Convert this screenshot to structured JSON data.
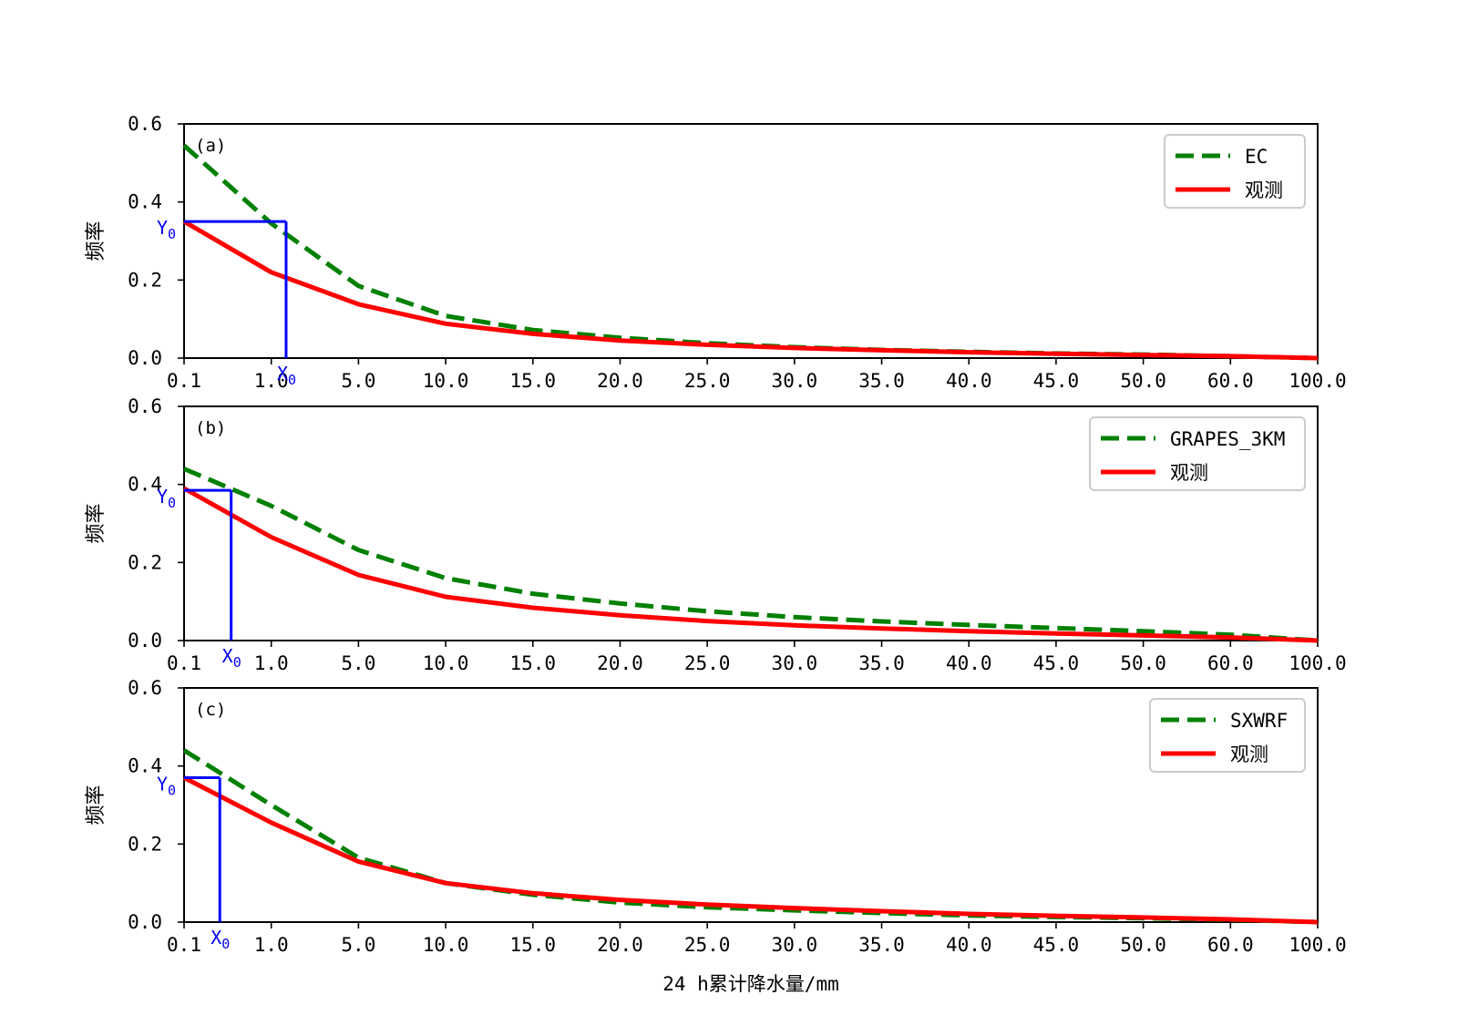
{
  "chart_data": [
    {
      "type": "line",
      "panel_label": "(a)",
      "x": [
        "0.1",
        "1.0",
        "5.0",
        "10.0",
        "15.0",
        "20.0",
        "25.0",
        "30.0",
        "35.0",
        "40.0",
        "45.0",
        "50.0",
        "60.0",
        "100.0"
      ],
      "series": [
        {
          "name": "EC",
          "style": "dashed",
          "color": "#008000",
          "values": [
            0.545,
            0.345,
            0.185,
            0.108,
            0.072,
            0.052,
            0.038,
            0.028,
            0.021,
            0.016,
            0.012,
            0.009,
            0.005,
            0.0
          ]
        },
        {
          "name": "观测",
          "style": "solid",
          "color": "#ff0000",
          "values": [
            0.35,
            0.22,
            0.138,
            0.088,
            0.062,
            0.045,
            0.034,
            0.026,
            0.02,
            0.015,
            0.011,
            0.008,
            0.005,
            0.0
          ]
        }
      ],
      "marker": {
        "x_label": "X0",
        "y_label": "Y0",
        "x_index": 1.17,
        "y": 0.35,
        "color": "#0000ff"
      },
      "ylabel": "频率",
      "xlabel": "",
      "ylim": [
        0,
        0.6
      ],
      "yticks": [
        "0.0",
        "0.2",
        "0.4",
        "0.6"
      ],
      "legend": "top-right",
      "grid": false
    },
    {
      "type": "line",
      "panel_label": "(b)",
      "x": [
        "0.1",
        "1.0",
        "5.0",
        "10.0",
        "15.0",
        "20.0",
        "25.0",
        "30.0",
        "35.0",
        "40.0",
        "45.0",
        "50.0",
        "60.0",
        "100.0"
      ],
      "series": [
        {
          "name": "GRAPES_3KM",
          "style": "dashed",
          "color": "#008000",
          "values": [
            0.44,
            0.345,
            0.232,
            0.16,
            0.12,
            0.095,
            0.075,
            0.06,
            0.049,
            0.04,
            0.032,
            0.024,
            0.015,
            0.0
          ]
        },
        {
          "name": "观测",
          "style": "solid",
          "color": "#ff0000",
          "values": [
            0.39,
            0.265,
            0.168,
            0.112,
            0.084,
            0.065,
            0.05,
            0.039,
            0.031,
            0.024,
            0.018,
            0.013,
            0.008,
            0.0
          ]
        }
      ],
      "marker": {
        "x_label": "X0",
        "y_label": "Y0",
        "x_index": 0.54,
        "y": 0.385,
        "color": "#0000ff"
      },
      "ylabel": "频率",
      "xlabel": "",
      "ylim": [
        0,
        0.6
      ],
      "yticks": [
        "0.0",
        "0.2",
        "0.4",
        "0.6"
      ],
      "legend": "top-right",
      "grid": false
    },
    {
      "type": "line",
      "panel_label": "(c)",
      "x": [
        "0.1",
        "1.0",
        "5.0",
        "10.0",
        "15.0",
        "20.0",
        "25.0",
        "30.0",
        "35.0",
        "40.0",
        "45.0",
        "50.0",
        "60.0",
        "100.0"
      ],
      "series": [
        {
          "name": "SXWRF",
          "style": "dashed",
          "color": "#008000",
          "values": [
            0.44,
            0.3,
            0.165,
            0.1,
            0.07,
            0.05,
            0.038,
            0.03,
            0.023,
            0.017,
            0.013,
            0.01,
            0.006,
            0.0
          ]
        },
        {
          "name": "观测",
          "style": "solid",
          "color": "#ff0000",
          "values": [
            0.37,
            0.255,
            0.155,
            0.1,
            0.074,
            0.057,
            0.045,
            0.036,
            0.028,
            0.021,
            0.016,
            0.012,
            0.007,
            0.0
          ]
        }
      ],
      "marker": {
        "x_label": "X0",
        "y_label": "Y0",
        "x_index": 0.41,
        "y": 0.37,
        "color": "#0000ff"
      },
      "ylabel": "频率",
      "xlabel": "24 h累计降水量/mm",
      "ylim": [
        0,
        0.6
      ],
      "yticks": [
        "0.0",
        "0.2",
        "0.4",
        "0.6"
      ],
      "legend": "top-right",
      "grid": false
    }
  ]
}
